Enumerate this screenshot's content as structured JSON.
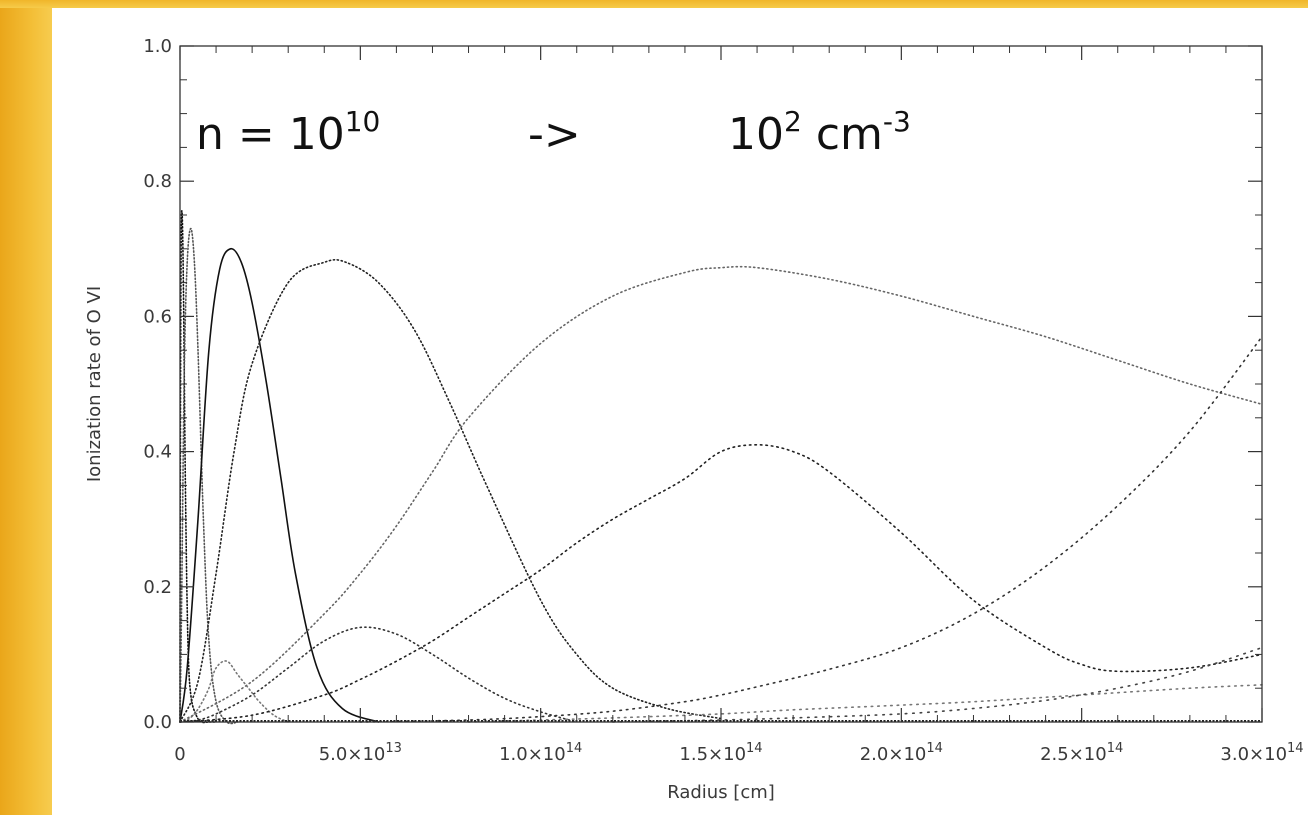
{
  "chart_data": {
    "type": "line",
    "title": "",
    "xlabel": "Radius [cm]",
    "ylabel": "Ionization rate of O VI",
    "xlim": [
      0,
      300000000000000.0
    ],
    "ylim": [
      0,
      1.0
    ],
    "grid": false,
    "x_ticks": [
      {
        "value": 0,
        "mantissa": "0",
        "exp": ""
      },
      {
        "value": 50000000000000.0,
        "mantissa": "5.0×10",
        "exp": "13"
      },
      {
        "value": 100000000000000.0,
        "mantissa": "1.0×10",
        "exp": "14"
      },
      {
        "value": 150000000000000.0,
        "mantissa": "1.5×10",
        "exp": "14"
      },
      {
        "value": 200000000000000.0,
        "mantissa": "2.0×10",
        "exp": "14"
      },
      {
        "value": 250000000000000.0,
        "mantissa": "2.5×10",
        "exp": "14"
      },
      {
        "value": 300000000000000.0,
        "mantissa": "3.0×10",
        "exp": "14"
      }
    ],
    "y_ticks": [
      {
        "value": 0.0,
        "label": "0.0"
      },
      {
        "value": 0.2,
        "label": "0.2"
      },
      {
        "value": 0.4,
        "label": "0.4"
      },
      {
        "value": 0.6,
        "label": "0.6"
      },
      {
        "value": 0.8,
        "label": "0.8"
      },
      {
        "value": 1.0,
        "label": "1.0"
      }
    ],
    "annotation": {
      "left_base": "n = 10",
      "left_exp": "10",
      "arrow": "->",
      "right_base": "10",
      "right_exp": "2",
      "right_unit": " cm",
      "right_unit_exp": "-3"
    },
    "series": [
      {
        "color": "#111111",
        "dash": "1.2 2.2",
        "x": [
          0,
          100000000000.0,
          300000000000.0,
          600000000000.0,
          1000000000000.0,
          1500000000000.0,
          2200000000000.0,
          3000000000000.0,
          4500000000000.0,
          6000000000000.0,
          8000000000000.0,
          10000000000000.0
        ],
        "y": [
          0,
          0.4,
          0.7,
          0.75,
          0.62,
          0.35,
          0.12,
          0.04,
          0.01,
          0.0,
          0.0,
          0.0
        ]
      },
      {
        "color": "#555555",
        "dash": "1.2 2.2",
        "x": [
          0,
          500000000000.0,
          1200000000000.0,
          2000000000000.0,
          3000000000000.0,
          4000000000000.0,
          5000000000000.0,
          6500000000000.0,
          8000000000000.0,
          10000000000000.0,
          13000000000000.0,
          16000000000000.0
        ],
        "y": [
          0,
          0.2,
          0.52,
          0.68,
          0.73,
          0.68,
          0.55,
          0.3,
          0.12,
          0.03,
          0.0,
          0.0
        ]
      },
      {
        "color": "#111111",
        "dash": "",
        "x": [
          0,
          2000000000000.0,
          5000000000000.0,
          8000000000000.0,
          11000000000000.0,
          14000000000000.0,
          17000000000000.0,
          20000000000000.0,
          24000000000000.0,
          28000000000000.0,
          32000000000000.0,
          38000000000000.0,
          45000000000000.0,
          55000000000000.0
        ],
        "y": [
          0,
          0.08,
          0.3,
          0.55,
          0.67,
          0.7,
          0.68,
          0.62,
          0.5,
          0.36,
          0.22,
          0.08,
          0.02,
          0.0
        ]
      },
      {
        "color": "#777777",
        "dash": "1.2 3",
        "x": [
          0,
          2000000000000.0,
          4000000000000.0,
          6000000000000.0,
          8000000000000.0,
          10000000000000.0,
          13000000000000.0,
          16000000000000.0,
          19000000000000.0,
          22000000000000.0,
          26000000000000.0,
          30000000000000.0
        ],
        "y": [
          0,
          0.003,
          0.012,
          0.028,
          0.05,
          0.08,
          0.09,
          0.07,
          0.05,
          0.03,
          0.01,
          0.0
        ]
      },
      {
        "color": "#222222",
        "dash": "1.2 2.8",
        "x": [
          0,
          5000000000000.0,
          10000000000000.0,
          15000000000000.0,
          20000000000000.0,
          30000000000000.0,
          40000000000000.0,
          46000000000000.0,
          55000000000000.0,
          65000000000000.0,
          75000000000000.0,
          85000000000000.0,
          100000000000000.0,
          110000000000000.0,
          120000000000000.0,
          135000000000000.0,
          150000000000000.0
        ],
        "y": [
          0,
          0.06,
          0.22,
          0.4,
          0.53,
          0.65,
          0.68,
          0.68,
          0.65,
          0.58,
          0.47,
          0.35,
          0.18,
          0.1,
          0.05,
          0.02,
          0.005
        ]
      },
      {
        "color": "#333333",
        "dash": "1.2 3.5",
        "x": [
          0,
          5000000000000.0,
          10000000000000.0,
          20000000000000.0,
          30000000000000.0,
          40000000000000.0,
          50000000000000.0,
          60000000000000.0,
          70000000000000.0,
          80000000000000.0,
          90000000000000.0,
          100000000000000.0,
          110000000000000.0
        ],
        "y": [
          0,
          0.003,
          0.012,
          0.04,
          0.08,
          0.12,
          0.14,
          0.13,
          0.1,
          0.065,
          0.035,
          0.015,
          0.0
        ]
      },
      {
        "color": "#666666",
        "dash": "1.2 3.2",
        "x": [
          0,
          20000000000000.0,
          40000000000000.0,
          50000000000000.0,
          60000000000000.0,
          70000000000000.0,
          80000000000000.0,
          100000000000000.0,
          120000000000000.0,
          140000000000000.0,
          150000000000000.0,
          160000000000000.0,
          180000000000000.0,
          200000000000000.0,
          220000000000000.0,
          240000000000000.0,
          260000000000000.0,
          280000000000000.0,
          300000000000000.0
        ],
        "y": [
          0,
          0.06,
          0.16,
          0.22,
          0.29,
          0.37,
          0.45,
          0.56,
          0.63,
          0.665,
          0.672,
          0.672,
          0.655,
          0.63,
          0.6,
          0.57,
          0.535,
          0.5,
          0.47
        ]
      },
      {
        "color": "#222222",
        "dash": "1.5 4",
        "x": [
          0,
          20000000000000.0,
          40000000000000.0,
          50000000000000.0,
          60000000000000.0,
          70000000000000.0,
          80000000000000.0,
          90000000000000.0,
          100000000000000.0,
          110000000000000.0,
          120000000000000.0,
          130000000000000.0,
          140000000000000.0,
          150000000000000.0,
          160000000000000.0,
          170000000000000.0,
          180000000000000.0,
          200000000000000.0,
          220000000000000.0,
          240000000000000.0,
          250000000000000.0,
          260000000000000.0,
          280000000000000.0,
          300000000000000.0
        ],
        "y": [
          0,
          0.01,
          0.04,
          0.063,
          0.09,
          0.12,
          0.155,
          0.19,
          0.225,
          0.265,
          0.3,
          0.33,
          0.36,
          0.4,
          0.41,
          0.4,
          0.37,
          0.28,
          0.18,
          0.11,
          0.085,
          0.075,
          0.08,
          0.1
        ]
      },
      {
        "color": "#333333",
        "dash": "1.5 5",
        "x": [
          50000000000000.0,
          80000000000000.0,
          100000000000000.0,
          120000000000000.0,
          140000000000000.0,
          150000000000000.0,
          160000000000000.0,
          180000000000000.0,
          200000000000000.0,
          220000000000000.0,
          240000000000000.0,
          260000000000000.0,
          280000000000000.0,
          300000000000000.0
        ],
        "y": [
          0,
          0.003,
          0.008,
          0.016,
          0.03,
          0.04,
          0.052,
          0.078,
          0.11,
          0.16,
          0.23,
          0.32,
          0.43,
          0.57
        ]
      },
      {
        "color": "#777777",
        "dash": "1.5 5",
        "x": [
          80000000000000.0,
          100000000000000.0,
          120000000000000.0,
          150000000000000.0,
          170000000000000.0,
          200000000000000.0,
          220000000000000.0,
          250000000000000.0,
          280000000000000.0,
          300000000000000.0
        ],
        "y": [
          0,
          0.003,
          0.006,
          0.012,
          0.018,
          0.025,
          0.03,
          0.04,
          0.05,
          0.055
        ]
      },
      {
        "color": "#444444",
        "dash": "1.5 6",
        "x": [
          120000000000000.0,
          150000000000000.0,
          170000000000000.0,
          200000000000000.0,
          220000000000000.0,
          240000000000000.0,
          260000000000000.0,
          280000000000000.0,
          300000000000000.0
        ],
        "y": [
          0,
          0.003,
          0.006,
          0.012,
          0.02,
          0.032,
          0.05,
          0.075,
          0.11
        ]
      }
    ]
  }
}
